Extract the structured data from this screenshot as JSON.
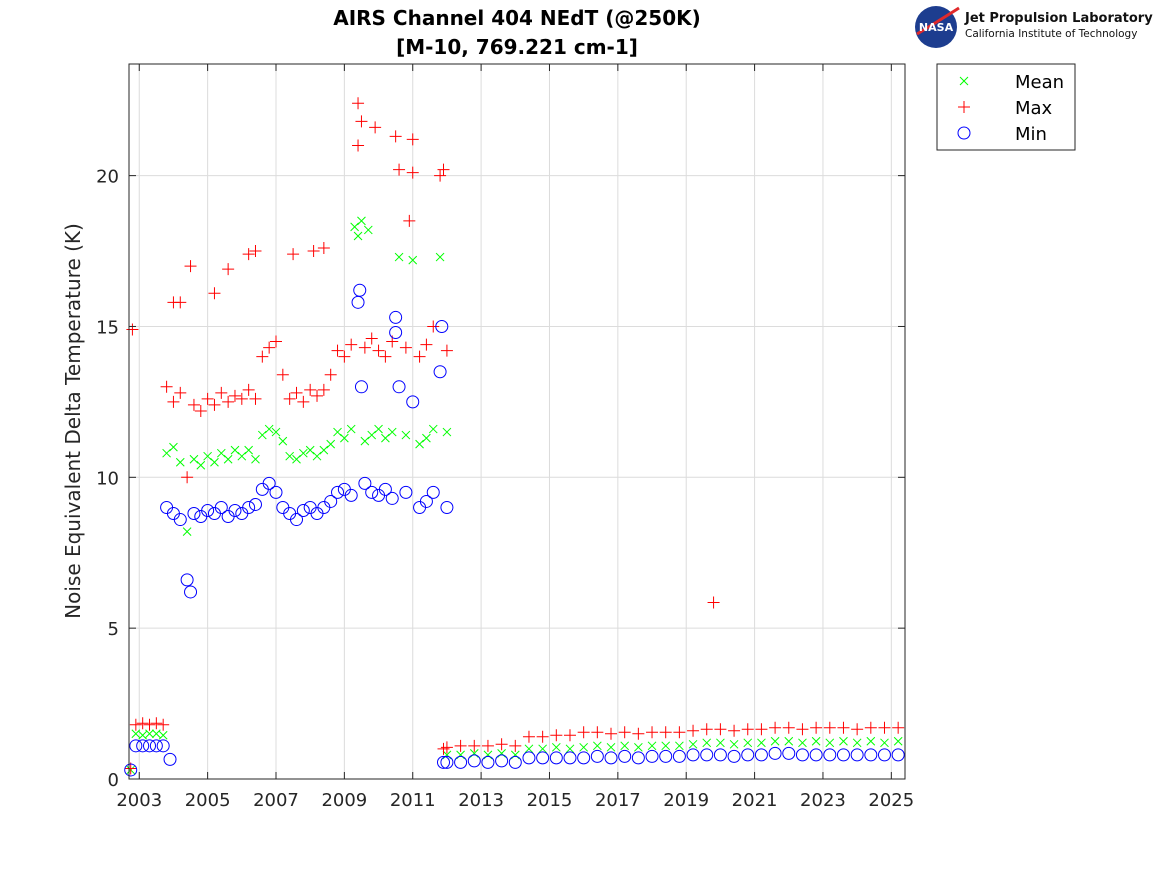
{
  "chart_data": {
    "type": "scatter",
    "title": "AIRS Channel 404 NEdT (@250K)",
    "subtitle": "[M-10, 769.221 cm-1]",
    "xlabel": "",
    "ylabel": "Noise Equivalent Delta Temperature (K)",
    "xlim": [
      2002.7,
      2025.4
    ],
    "ylim": [
      0,
      23.7
    ],
    "xticks": [
      2003,
      2005,
      2007,
      2009,
      2011,
      2013,
      2015,
      2017,
      2019,
      2021,
      2023,
      2025
    ],
    "yticks": [
      0,
      5,
      10,
      15,
      20
    ],
    "grid": true,
    "legend_placement": "outside-top-right",
    "series": [
      {
        "name": "Mean",
        "marker": "x",
        "color": "#00ff00",
        "points": [
          [
            2002.75,
            0.3
          ],
          [
            2002.9,
            1.5
          ],
          [
            2003.1,
            1.45
          ],
          [
            2003.3,
            1.5
          ],
          [
            2003.5,
            1.5
          ],
          [
            2003.7,
            1.45
          ],
          [
            2003.8,
            10.8
          ],
          [
            2004.0,
            11.0
          ],
          [
            2004.2,
            10.5
          ],
          [
            2004.4,
            8.2
          ],
          [
            2004.6,
            10.6
          ],
          [
            2004.8,
            10.4
          ],
          [
            2005.0,
            10.7
          ],
          [
            2005.2,
            10.5
          ],
          [
            2005.4,
            10.8
          ],
          [
            2005.6,
            10.6
          ],
          [
            2005.8,
            10.9
          ],
          [
            2006.0,
            10.7
          ],
          [
            2006.2,
            10.9
          ],
          [
            2006.4,
            10.6
          ],
          [
            2006.6,
            11.4
          ],
          [
            2006.8,
            11.6
          ],
          [
            2007.0,
            11.5
          ],
          [
            2007.2,
            11.2
          ],
          [
            2007.4,
            10.7
          ],
          [
            2007.6,
            10.6
          ],
          [
            2007.8,
            10.8
          ],
          [
            2008.0,
            10.9
          ],
          [
            2008.2,
            10.7
          ],
          [
            2008.4,
            10.9
          ],
          [
            2008.6,
            11.1
          ],
          [
            2008.8,
            11.5
          ],
          [
            2009.0,
            11.3
          ],
          [
            2009.2,
            11.6
          ],
          [
            2009.3,
            18.3
          ],
          [
            2009.4,
            18.0
          ],
          [
            2009.5,
            18.5
          ],
          [
            2009.6,
            11.2
          ],
          [
            2009.7,
            18.2
          ],
          [
            2009.8,
            11.4
          ],
          [
            2010.0,
            11.6
          ],
          [
            2010.2,
            11.3
          ],
          [
            2010.4,
            11.5
          ],
          [
            2010.6,
            17.3
          ],
          [
            2010.8,
            11.4
          ],
          [
            2011.0,
            17.2
          ],
          [
            2011.2,
            11.1
          ],
          [
            2011.4,
            11.3
          ],
          [
            2011.6,
            11.6
          ],
          [
            2011.8,
            17.3
          ],
          [
            2012.0,
            11.5
          ],
          [
            2012.0,
            0.8
          ],
          [
            2012.4,
            0.8
          ],
          [
            2012.8,
            0.85
          ],
          [
            2013.2,
            0.8
          ],
          [
            2013.6,
            0.85
          ],
          [
            2014.0,
            0.8
          ],
          [
            2014.4,
            1.0
          ],
          [
            2014.8,
            1.0
          ],
          [
            2015.2,
            1.05
          ],
          [
            2015.6,
            1.0
          ],
          [
            2016.0,
            1.05
          ],
          [
            2016.4,
            1.1
          ],
          [
            2016.8,
            1.05
          ],
          [
            2017.2,
            1.1
          ],
          [
            2017.6,
            1.05
          ],
          [
            2018.0,
            1.1
          ],
          [
            2018.4,
            1.1
          ],
          [
            2018.8,
            1.1
          ],
          [
            2019.2,
            1.15
          ],
          [
            2019.6,
            1.2
          ],
          [
            2020.0,
            1.2
          ],
          [
            2020.4,
            1.15
          ],
          [
            2020.8,
            1.2
          ],
          [
            2021.2,
            1.2
          ],
          [
            2021.6,
            1.25
          ],
          [
            2022.0,
            1.25
          ],
          [
            2022.4,
            1.2
          ],
          [
            2022.8,
            1.25
          ],
          [
            2023.2,
            1.2
          ],
          [
            2023.6,
            1.25
          ],
          [
            2024.0,
            1.2
          ],
          [
            2024.4,
            1.25
          ],
          [
            2024.8,
            1.2
          ],
          [
            2025.2,
            1.25
          ]
        ]
      },
      {
        "name": "Max",
        "marker": "+",
        "color": "#ff0000",
        "points": [
          [
            2002.75,
            0.35
          ],
          [
            2002.8,
            14.9
          ],
          [
            2002.9,
            1.8
          ],
          [
            2003.1,
            1.85
          ],
          [
            2003.3,
            1.8
          ],
          [
            2003.5,
            1.85
          ],
          [
            2003.7,
            1.8
          ],
          [
            2003.8,
            13.0
          ],
          [
            2004.0,
            12.5
          ],
          [
            2004.0,
            15.8
          ],
          [
            2004.2,
            12.8
          ],
          [
            2004.2,
            15.8
          ],
          [
            2004.4,
            10.0
          ],
          [
            2004.5,
            17.0
          ],
          [
            2004.6,
            12.4
          ],
          [
            2004.8,
            12.2
          ],
          [
            2005.0,
            12.6
          ],
          [
            2005.2,
            12.4
          ],
          [
            2005.2,
            16.1
          ],
          [
            2005.4,
            12.8
          ],
          [
            2005.6,
            12.5
          ],
          [
            2005.6,
            16.9
          ],
          [
            2005.8,
            12.7
          ],
          [
            2006.0,
            12.6
          ],
          [
            2006.2,
            12.9
          ],
          [
            2006.2,
            17.4
          ],
          [
            2006.4,
            12.6
          ],
          [
            2006.4,
            17.5
          ],
          [
            2006.6,
            14.0
          ],
          [
            2006.8,
            14.3
          ],
          [
            2007.0,
            14.5
          ],
          [
            2007.2,
            13.4
          ],
          [
            2007.4,
            12.6
          ],
          [
            2007.5,
            17.4
          ],
          [
            2007.6,
            12.8
          ],
          [
            2007.8,
            12.5
          ],
          [
            2008.0,
            12.9
          ],
          [
            2008.1,
            17.5
          ],
          [
            2008.2,
            12.7
          ],
          [
            2008.4,
            12.9
          ],
          [
            2008.4,
            17.6
          ],
          [
            2008.6,
            13.4
          ],
          [
            2008.8,
            14.2
          ],
          [
            2009.0,
            14.0
          ],
          [
            2009.2,
            14.4
          ],
          [
            2009.4,
            21.0
          ],
          [
            2009.4,
            22.4
          ],
          [
            2009.5,
            21.8
          ],
          [
            2009.6,
            14.3
          ],
          [
            2009.8,
            14.6
          ],
          [
            2009.9,
            21.6
          ],
          [
            2010.0,
            14.2
          ],
          [
            2010.2,
            14.0
          ],
          [
            2010.4,
            14.5
          ],
          [
            2010.5,
            21.3
          ],
          [
            2010.6,
            20.2
          ],
          [
            2010.8,
            14.3
          ],
          [
            2010.9,
            18.5
          ],
          [
            2011.0,
            20.1
          ],
          [
            2011.0,
            21.2
          ],
          [
            2011.2,
            14.0
          ],
          [
            2011.4,
            14.4
          ],
          [
            2011.6,
            15.0
          ],
          [
            2011.8,
            20.0
          ],
          [
            2011.9,
            20.2
          ],
          [
            2012.0,
            14.2
          ],
          [
            2011.9,
            1.0
          ],
          [
            2012.0,
            1.05
          ],
          [
            2012.4,
            1.1
          ],
          [
            2012.8,
            1.1
          ],
          [
            2013.2,
            1.1
          ],
          [
            2013.6,
            1.15
          ],
          [
            2014.0,
            1.1
          ],
          [
            2014.4,
            1.4
          ],
          [
            2014.8,
            1.4
          ],
          [
            2015.2,
            1.45
          ],
          [
            2015.6,
            1.45
          ],
          [
            2016.0,
            1.55
          ],
          [
            2016.4,
            1.55
          ],
          [
            2016.8,
            1.5
          ],
          [
            2017.2,
            1.55
          ],
          [
            2017.6,
            1.5
          ],
          [
            2018.0,
            1.55
          ],
          [
            2018.4,
            1.55
          ],
          [
            2018.8,
            1.55
          ],
          [
            2019.2,
            1.6
          ],
          [
            2019.6,
            1.65
          ],
          [
            2019.8,
            5.85
          ],
          [
            2020.0,
            1.65
          ],
          [
            2020.4,
            1.6
          ],
          [
            2020.8,
            1.65
          ],
          [
            2021.2,
            1.65
          ],
          [
            2021.6,
            1.7
          ],
          [
            2022.0,
            1.7
          ],
          [
            2022.4,
            1.65
          ],
          [
            2022.8,
            1.7
          ],
          [
            2023.2,
            1.7
          ],
          [
            2023.6,
            1.7
          ],
          [
            2024.0,
            1.65
          ],
          [
            2024.4,
            1.7
          ],
          [
            2024.8,
            1.7
          ],
          [
            2025.2,
            1.7
          ]
        ]
      },
      {
        "name": "Min",
        "marker": "o",
        "color": "#0000ff",
        "points": [
          [
            2002.75,
            0.3
          ],
          [
            2002.9,
            1.1
          ],
          [
            2003.1,
            1.1
          ],
          [
            2003.3,
            1.1
          ],
          [
            2003.5,
            1.1
          ],
          [
            2003.7,
            1.1
          ],
          [
            2003.9,
            0.65
          ],
          [
            2003.8,
            9.0
          ],
          [
            2004.0,
            8.8
          ],
          [
            2004.2,
            8.6
          ],
          [
            2004.4,
            6.6
          ],
          [
            2004.5,
            6.2
          ],
          [
            2004.6,
            8.8
          ],
          [
            2004.8,
            8.7
          ],
          [
            2005.0,
            8.9
          ],
          [
            2005.2,
            8.8
          ],
          [
            2005.4,
            9.0
          ],
          [
            2005.6,
            8.7
          ],
          [
            2005.8,
            8.9
          ],
          [
            2006.0,
            8.8
          ],
          [
            2006.2,
            9.0
          ],
          [
            2006.4,
            9.1
          ],
          [
            2006.6,
            9.6
          ],
          [
            2006.8,
            9.8
          ],
          [
            2007.0,
            9.5
          ],
          [
            2007.2,
            9.0
          ],
          [
            2007.4,
            8.8
          ],
          [
            2007.6,
            8.6
          ],
          [
            2007.8,
            8.9
          ],
          [
            2008.0,
            9.0
          ],
          [
            2008.2,
            8.8
          ],
          [
            2008.4,
            9.0
          ],
          [
            2008.6,
            9.2
          ],
          [
            2008.8,
            9.5
          ],
          [
            2009.0,
            9.6
          ],
          [
            2009.2,
            9.4
          ],
          [
            2009.4,
            15.8
          ],
          [
            2009.45,
            16.2
          ],
          [
            2009.5,
            13.0
          ],
          [
            2009.6,
            9.8
          ],
          [
            2009.8,
            9.5
          ],
          [
            2010.0,
            9.4
          ],
          [
            2010.2,
            9.6
          ],
          [
            2010.4,
            9.3
          ],
          [
            2010.5,
            14.8
          ],
          [
            2010.5,
            15.3
          ],
          [
            2010.6,
            13.0
          ],
          [
            2010.8,
            9.5
          ],
          [
            2011.0,
            12.5
          ],
          [
            2011.2,
            9.0
          ],
          [
            2011.4,
            9.2
          ],
          [
            2011.6,
            9.5
          ],
          [
            2011.8,
            13.5
          ],
          [
            2011.85,
            15.0
          ],
          [
            2012.0,
            9.0
          ],
          [
            2011.9,
            0.55
          ],
          [
            2012.0,
            0.55
          ],
          [
            2012.4,
            0.55
          ],
          [
            2012.8,
            0.6
          ],
          [
            2013.2,
            0.55
          ],
          [
            2013.6,
            0.6
          ],
          [
            2014.0,
            0.55
          ],
          [
            2014.4,
            0.7
          ],
          [
            2014.8,
            0.7
          ],
          [
            2015.2,
            0.7
          ],
          [
            2015.6,
            0.7
          ],
          [
            2016.0,
            0.7
          ],
          [
            2016.4,
            0.75
          ],
          [
            2016.8,
            0.7
          ],
          [
            2017.2,
            0.75
          ],
          [
            2017.6,
            0.7
          ],
          [
            2018.0,
            0.75
          ],
          [
            2018.4,
            0.75
          ],
          [
            2018.8,
            0.75
          ],
          [
            2019.2,
            0.8
          ],
          [
            2019.6,
            0.8
          ],
          [
            2020.0,
            0.8
          ],
          [
            2020.4,
            0.75
          ],
          [
            2020.8,
            0.8
          ],
          [
            2021.2,
            0.8
          ],
          [
            2021.6,
            0.85
          ],
          [
            2022.0,
            0.85
          ],
          [
            2022.4,
            0.8
          ],
          [
            2022.8,
            0.8
          ],
          [
            2023.2,
            0.8
          ],
          [
            2023.6,
            0.8
          ],
          [
            2024.0,
            0.8
          ],
          [
            2024.4,
            0.8
          ],
          [
            2024.8,
            0.8
          ],
          [
            2025.2,
            0.8
          ]
        ]
      }
    ]
  },
  "logo": {
    "line1": "Jet Propulsion Laboratory",
    "line2": "California Institute of Technology",
    "badge": "NASA"
  }
}
